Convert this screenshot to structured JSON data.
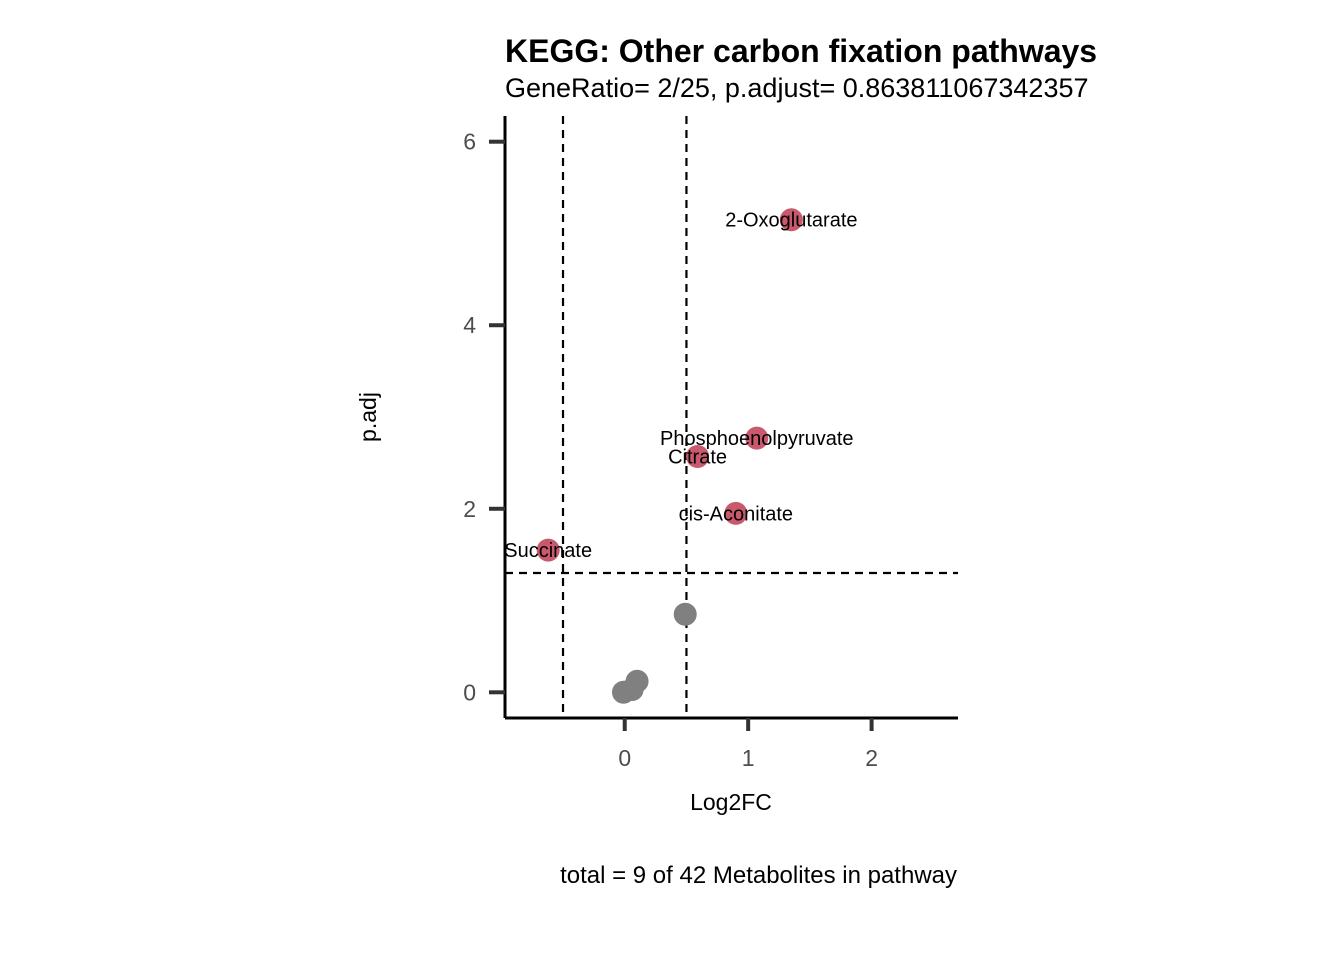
{
  "chart_data": {
    "type": "scatter",
    "title": "KEGG: Other carbon fixation pathways",
    "subtitle": "GeneRatio= 2/25, p.adjust= 0.863811067342357",
    "xlabel": "Log2FC",
    "ylabel": "p.adj",
    "caption": "total = 9 of 42 Metabolites in pathway",
    "xlim": [
      -0.97,
      2.7
    ],
    "ylim": [
      -0.28,
      6.28
    ],
    "x_ticks": [
      0,
      1,
      2
    ],
    "y_ticks": [
      0,
      2,
      4,
      6
    ],
    "thresholds": {
      "log2fc": [
        -0.5,
        0.5
      ],
      "p_adj": 1.3
    },
    "colors": {
      "significant": "#c9596c",
      "not_significant": "#808080"
    },
    "points": [
      {
        "x": 1.35,
        "y": 5.15,
        "label": "2-Oxoglutarate",
        "significant": true
      },
      {
        "x": 1.07,
        "y": 2.77,
        "label": "Phosphoenolpyruvate",
        "significant": true
      },
      {
        "x": 0.59,
        "y": 2.57,
        "label": "Citrate",
        "significant": true
      },
      {
        "x": 0.9,
        "y": 1.95,
        "label": "cis-Aconitate",
        "significant": true
      },
      {
        "x": -0.62,
        "y": 1.55,
        "label": "Succinate",
        "significant": true
      },
      {
        "x": 0.49,
        "y": 0.85,
        "label": "",
        "significant": false
      },
      {
        "x": 0.1,
        "y": 0.12,
        "label": "",
        "significant": false
      },
      {
        "x": 0.06,
        "y": 0.03,
        "label": "",
        "significant": false
      },
      {
        "x": -0.01,
        "y": 0.0,
        "label": "",
        "significant": false
      }
    ]
  }
}
